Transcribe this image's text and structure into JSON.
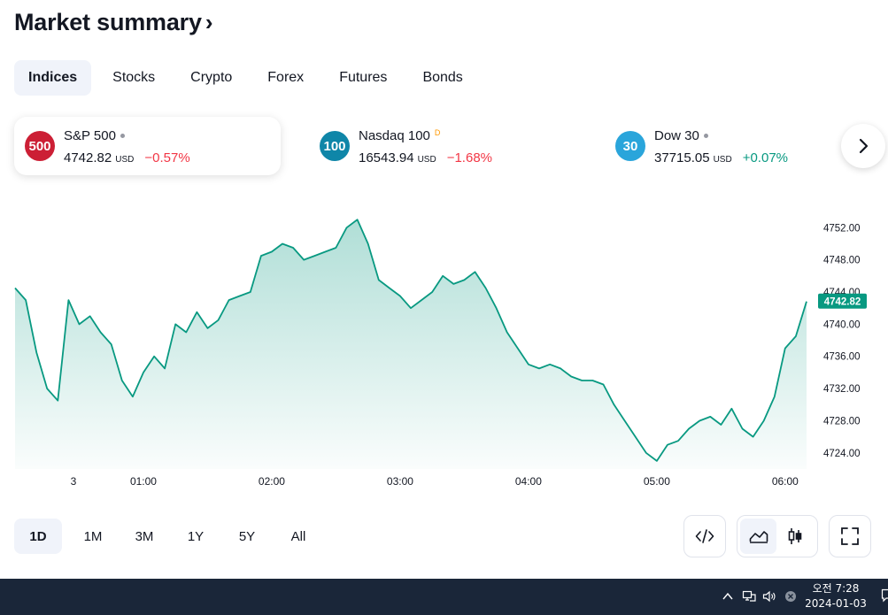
{
  "header": {
    "title": "Market summary",
    "title_chevron": "›"
  },
  "tabs": [
    {
      "label": "Indices",
      "active": true
    },
    {
      "label": "Stocks"
    },
    {
      "label": "Crypto"
    },
    {
      "label": "Forex"
    },
    {
      "label": "Futures"
    },
    {
      "label": "Bonds"
    }
  ],
  "cards": [
    {
      "logo_text": "500",
      "logo_color": "#cc1f35",
      "name": "S&P 500",
      "status": "dot",
      "price": "4742.82",
      "currency": "USD",
      "change": "−0.57%",
      "direction": "down",
      "active": true
    },
    {
      "logo_text": "100",
      "logo_color": "#0f86a8",
      "name": "Nasdaq 100",
      "status": "D",
      "price": "16543.94",
      "currency": "USD",
      "change": "−1.68%",
      "direction": "down"
    },
    {
      "logo_text": "30",
      "logo_color": "#2aa5db",
      "name": "Dow 30",
      "status": "dot",
      "price": "37715.05",
      "currency": "USD",
      "change": "+0.07%",
      "direction": "up"
    }
  ],
  "icons": {
    "next": "chevron-right-icon",
    "embed": "code-icon",
    "area_chart": "area-chart-icon",
    "candles": "candlestick-icon",
    "fullscreen": "fullscreen-icon"
  },
  "chart_data": {
    "type": "area",
    "line_color": "#089981",
    "fill_color": "#089981",
    "ylim": [
      4722,
      4755
    ],
    "y_ticks": [
      "4752.00",
      "4748.00",
      "4744.00",
      "4740.00",
      "4736.00",
      "4732.00",
      "4728.00",
      "4724.00"
    ],
    "x_ticks": [
      "3",
      "01:00",
      "02:00",
      "03:00",
      "04:00",
      "05:00",
      "06:00"
    ],
    "last_price": "4742.82",
    "x": [
      "00:00",
      "00:05",
      "00:10",
      "00:15",
      "00:20",
      "00:25",
      "00:30",
      "00:35",
      "00:40",
      "00:45",
      "00:50",
      "00:55",
      "01:00",
      "01:05",
      "01:10",
      "01:15",
      "01:20",
      "01:25",
      "01:30",
      "01:35",
      "01:40",
      "01:45",
      "01:50",
      "01:55",
      "02:00",
      "02:05",
      "02:10",
      "02:15",
      "02:20",
      "02:25",
      "02:30",
      "02:35",
      "02:40",
      "02:45",
      "02:50",
      "02:55",
      "03:00",
      "03:05",
      "03:10",
      "03:15",
      "03:20",
      "03:25",
      "03:30",
      "03:35",
      "03:40",
      "03:45",
      "03:50",
      "03:55",
      "04:00",
      "04:05",
      "04:10",
      "04:15",
      "04:20",
      "04:25",
      "04:30",
      "04:35",
      "04:40",
      "04:45",
      "04:50",
      "04:55",
      "05:00",
      "05:05",
      "05:10",
      "05:15",
      "05:20",
      "05:25",
      "05:30",
      "05:35",
      "05:40",
      "05:45",
      "05:50",
      "05:55",
      "06:00",
      "06:05",
      "06:10"
    ],
    "values": [
      4744.5,
      4743.0,
      4736.5,
      4732.0,
      4730.5,
      4743.0,
      4740.0,
      4741.0,
      4739.0,
      4737.5,
      4733.0,
      4731.0,
      4734.0,
      4736.0,
      4734.5,
      4740.0,
      4739.0,
      4741.5,
      4739.5,
      4740.5,
      4743.0,
      4743.5,
      4744.0,
      4748.5,
      4749.0,
      4750.0,
      4749.5,
      4748.0,
      4748.5,
      4749.0,
      4749.5,
      4752.0,
      4753.0,
      4750.0,
      4745.5,
      4744.5,
      4743.5,
      4742.0,
      4743.0,
      4744.0,
      4746.0,
      4745.0,
      4745.5,
      4746.5,
      4744.5,
      4742.0,
      4739.0,
      4737.0,
      4735.0,
      4734.5,
      4735.0,
      4734.5,
      4733.5,
      4733.0,
      4733.0,
      4732.5,
      4730.0,
      4728.0,
      4726.0,
      4724.0,
      4723.0,
      4725.0,
      4725.5,
      4727.0,
      4728.0,
      4728.5,
      4727.5,
      4729.5,
      4727.0,
      4726.0,
      4728.0,
      4731.0,
      4737.0,
      4738.5,
      4742.82
    ]
  },
  "time_ranges": [
    {
      "label": "1D",
      "active": true
    },
    {
      "label": "1M"
    },
    {
      "label": "3M"
    },
    {
      "label": "1Y"
    },
    {
      "label": "5Y"
    },
    {
      "label": "All"
    }
  ],
  "taskbar": {
    "time": "오전 7:28",
    "date": "2024-01-03"
  }
}
